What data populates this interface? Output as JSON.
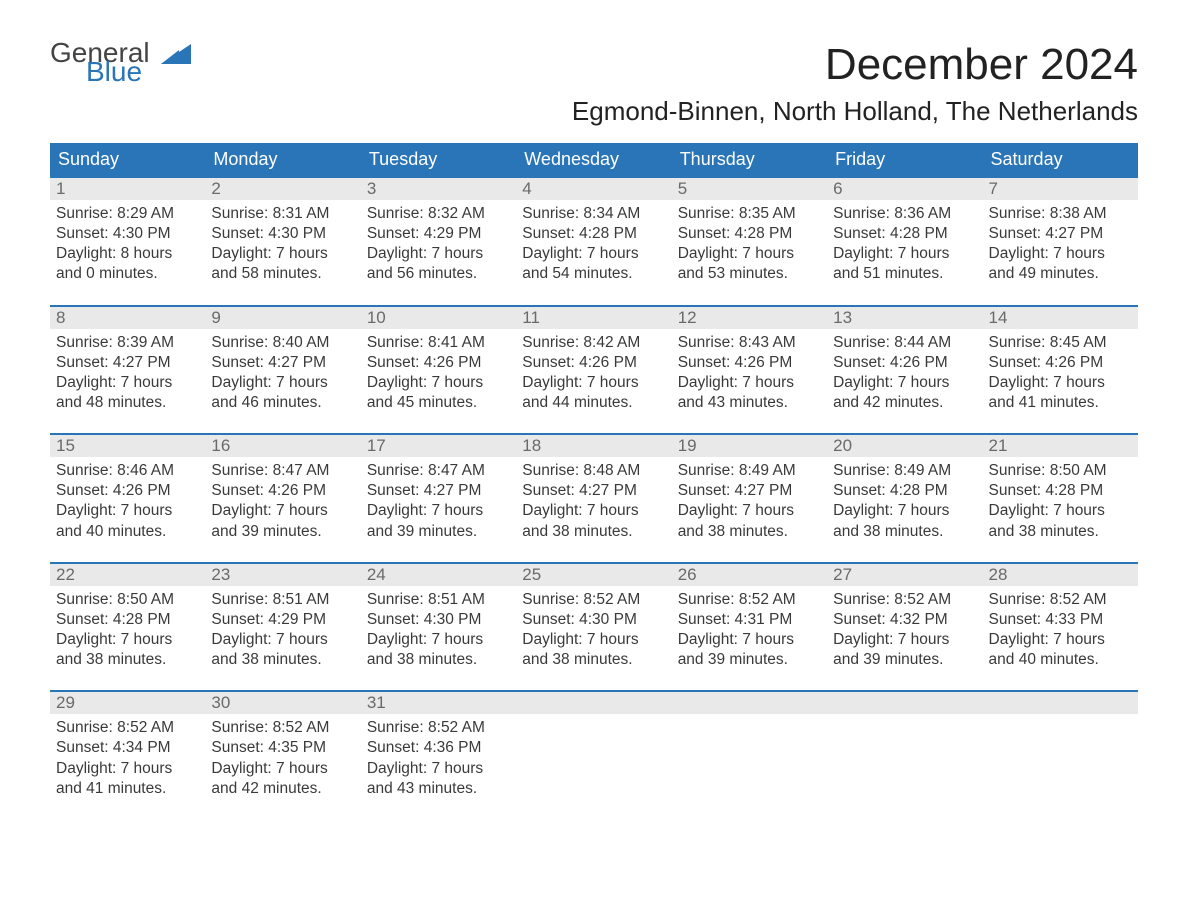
{
  "brand": {
    "line1": "General",
    "line2": "Blue",
    "logo_color": "#2a74b8"
  },
  "title": "December 2024",
  "subtitle": "Egmond-Binnen, North Holland, The Netherlands",
  "colors": {
    "header_bg": "#2a74b8",
    "header_fg": "#ffffff",
    "daynum_bg": "#e9e9e9",
    "daynum_fg": "#6a6a6a",
    "week_border": "#2a74b8",
    "body_text": "#3a3a3a",
    "page_bg": "#ffffff"
  },
  "fonts": {
    "title_size_pt": 33,
    "subtitle_size_pt": 20,
    "dow_size_pt": 14,
    "daynum_size_pt": 13,
    "body_size_pt": 12
  },
  "days_of_week": [
    "Sunday",
    "Monday",
    "Tuesday",
    "Wednesday",
    "Thursday",
    "Friday",
    "Saturday"
  ],
  "weeks": [
    [
      {
        "n": "1",
        "sunrise": "Sunrise: 8:29 AM",
        "sunset": "Sunset: 4:30 PM",
        "d1": "Daylight: 8 hours",
        "d2": "and 0 minutes."
      },
      {
        "n": "2",
        "sunrise": "Sunrise: 8:31 AM",
        "sunset": "Sunset: 4:30 PM",
        "d1": "Daylight: 7 hours",
        "d2": "and 58 minutes."
      },
      {
        "n": "3",
        "sunrise": "Sunrise: 8:32 AM",
        "sunset": "Sunset: 4:29 PM",
        "d1": "Daylight: 7 hours",
        "d2": "and 56 minutes."
      },
      {
        "n": "4",
        "sunrise": "Sunrise: 8:34 AM",
        "sunset": "Sunset: 4:28 PM",
        "d1": "Daylight: 7 hours",
        "d2": "and 54 minutes."
      },
      {
        "n": "5",
        "sunrise": "Sunrise: 8:35 AM",
        "sunset": "Sunset: 4:28 PM",
        "d1": "Daylight: 7 hours",
        "d2": "and 53 minutes."
      },
      {
        "n": "6",
        "sunrise": "Sunrise: 8:36 AM",
        "sunset": "Sunset: 4:28 PM",
        "d1": "Daylight: 7 hours",
        "d2": "and 51 minutes."
      },
      {
        "n": "7",
        "sunrise": "Sunrise: 8:38 AM",
        "sunset": "Sunset: 4:27 PM",
        "d1": "Daylight: 7 hours",
        "d2": "and 49 minutes."
      }
    ],
    [
      {
        "n": "8",
        "sunrise": "Sunrise: 8:39 AM",
        "sunset": "Sunset: 4:27 PM",
        "d1": "Daylight: 7 hours",
        "d2": "and 48 minutes."
      },
      {
        "n": "9",
        "sunrise": "Sunrise: 8:40 AM",
        "sunset": "Sunset: 4:27 PM",
        "d1": "Daylight: 7 hours",
        "d2": "and 46 minutes."
      },
      {
        "n": "10",
        "sunrise": "Sunrise: 8:41 AM",
        "sunset": "Sunset: 4:26 PM",
        "d1": "Daylight: 7 hours",
        "d2": "and 45 minutes."
      },
      {
        "n": "11",
        "sunrise": "Sunrise: 8:42 AM",
        "sunset": "Sunset: 4:26 PM",
        "d1": "Daylight: 7 hours",
        "d2": "and 44 minutes."
      },
      {
        "n": "12",
        "sunrise": "Sunrise: 8:43 AM",
        "sunset": "Sunset: 4:26 PM",
        "d1": "Daylight: 7 hours",
        "d2": "and 43 minutes."
      },
      {
        "n": "13",
        "sunrise": "Sunrise: 8:44 AM",
        "sunset": "Sunset: 4:26 PM",
        "d1": "Daylight: 7 hours",
        "d2": "and 42 minutes."
      },
      {
        "n": "14",
        "sunrise": "Sunrise: 8:45 AM",
        "sunset": "Sunset: 4:26 PM",
        "d1": "Daylight: 7 hours",
        "d2": "and 41 minutes."
      }
    ],
    [
      {
        "n": "15",
        "sunrise": "Sunrise: 8:46 AM",
        "sunset": "Sunset: 4:26 PM",
        "d1": "Daylight: 7 hours",
        "d2": "and 40 minutes."
      },
      {
        "n": "16",
        "sunrise": "Sunrise: 8:47 AM",
        "sunset": "Sunset: 4:26 PM",
        "d1": "Daylight: 7 hours",
        "d2": "and 39 minutes."
      },
      {
        "n": "17",
        "sunrise": "Sunrise: 8:47 AM",
        "sunset": "Sunset: 4:27 PM",
        "d1": "Daylight: 7 hours",
        "d2": "and 39 minutes."
      },
      {
        "n": "18",
        "sunrise": "Sunrise: 8:48 AM",
        "sunset": "Sunset: 4:27 PM",
        "d1": "Daylight: 7 hours",
        "d2": "and 38 minutes."
      },
      {
        "n": "19",
        "sunrise": "Sunrise: 8:49 AM",
        "sunset": "Sunset: 4:27 PM",
        "d1": "Daylight: 7 hours",
        "d2": "and 38 minutes."
      },
      {
        "n": "20",
        "sunrise": "Sunrise: 8:49 AM",
        "sunset": "Sunset: 4:28 PM",
        "d1": "Daylight: 7 hours",
        "d2": "and 38 minutes."
      },
      {
        "n": "21",
        "sunrise": "Sunrise: 8:50 AM",
        "sunset": "Sunset: 4:28 PM",
        "d1": "Daylight: 7 hours",
        "d2": "and 38 minutes."
      }
    ],
    [
      {
        "n": "22",
        "sunrise": "Sunrise: 8:50 AM",
        "sunset": "Sunset: 4:28 PM",
        "d1": "Daylight: 7 hours",
        "d2": "and 38 minutes."
      },
      {
        "n": "23",
        "sunrise": "Sunrise: 8:51 AM",
        "sunset": "Sunset: 4:29 PM",
        "d1": "Daylight: 7 hours",
        "d2": "and 38 minutes."
      },
      {
        "n": "24",
        "sunrise": "Sunrise: 8:51 AM",
        "sunset": "Sunset: 4:30 PM",
        "d1": "Daylight: 7 hours",
        "d2": "and 38 minutes."
      },
      {
        "n": "25",
        "sunrise": "Sunrise: 8:52 AM",
        "sunset": "Sunset: 4:30 PM",
        "d1": "Daylight: 7 hours",
        "d2": "and 38 minutes."
      },
      {
        "n": "26",
        "sunrise": "Sunrise: 8:52 AM",
        "sunset": "Sunset: 4:31 PM",
        "d1": "Daylight: 7 hours",
        "d2": "and 39 minutes."
      },
      {
        "n": "27",
        "sunrise": "Sunrise: 8:52 AM",
        "sunset": "Sunset: 4:32 PM",
        "d1": "Daylight: 7 hours",
        "d2": "and 39 minutes."
      },
      {
        "n": "28",
        "sunrise": "Sunrise: 8:52 AM",
        "sunset": "Sunset: 4:33 PM",
        "d1": "Daylight: 7 hours",
        "d2": "and 40 minutes."
      }
    ],
    [
      {
        "n": "29",
        "sunrise": "Sunrise: 8:52 AM",
        "sunset": "Sunset: 4:34 PM",
        "d1": "Daylight: 7 hours",
        "d2": "and 41 minutes."
      },
      {
        "n": "30",
        "sunrise": "Sunrise: 8:52 AM",
        "sunset": "Sunset: 4:35 PM",
        "d1": "Daylight: 7 hours",
        "d2": "and 42 minutes."
      },
      {
        "n": "31",
        "sunrise": "Sunrise: 8:52 AM",
        "sunset": "Sunset: 4:36 PM",
        "d1": "Daylight: 7 hours",
        "d2": "and 43 minutes."
      },
      {
        "empty": true
      },
      {
        "empty": true
      },
      {
        "empty": true
      },
      {
        "empty": true
      }
    ]
  ]
}
